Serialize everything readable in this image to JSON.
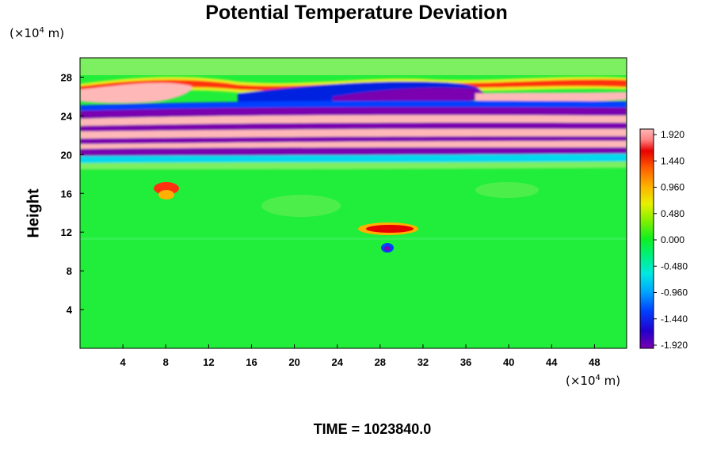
{
  "chart_data": {
    "type": "heatmap",
    "title": "Potential Temperature Deviation",
    "ylabel": "Height",
    "y_unit": {
      "prefix": "(×10",
      "exp": "4",
      "suffix": " m)"
    },
    "x_unit": {
      "prefix": "(×10",
      "exp": "4",
      "suffix": " m)"
    },
    "xlim": [
      0,
      51
    ],
    "ylim": [
      0,
      30
    ],
    "x_ticks": [
      "4",
      "8",
      "12",
      "16",
      "20",
      "24",
      "28",
      "32",
      "36",
      "40",
      "44",
      "48"
    ],
    "y_ticks": [
      "4",
      "8",
      "12",
      "16",
      "20",
      "24",
      "28"
    ],
    "colorbar": {
      "range": [
        -1.92,
        1.92
      ],
      "ticks": [
        "1.920",
        "1.440",
        "0.960",
        "0.480",
        "0.000",
        "-0.480",
        "-0.960",
        "-1.440",
        "-1.920"
      ]
    },
    "footer": "TIME = 1023840.0"
  }
}
